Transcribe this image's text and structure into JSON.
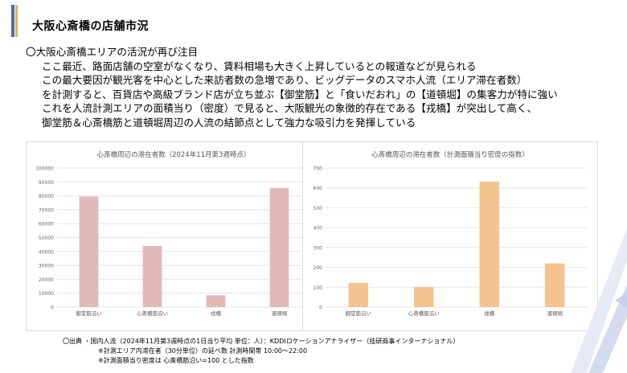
{
  "title": "大阪心斎橋の店舗市況",
  "bullet": {
    "heading": "〇大阪心斎橋エリアの活況が再び注目",
    "lines": [
      "ここ最近、路面店舗の空室がなくなり、賃料相場も大きく上昇しているとの報道などが見られる",
      "この最大要因が観光客を中心とした来訪者数の急増であり、ビッグデータのスマホ人流（エリア滞在者数）",
      "を計測すると、百貨店や高級ブランド店が立ち並ぶ【御堂筋】と「食いだおれ」の【道頓堀】の集客力が特に強い",
      "これを人流計測エリアの面積当り（密度）で見ると、大阪観光の象徴的存在である【戎橋】が突出して高く、",
      "御堂筋＆心斎橋筋と道頓堀周辺の人流の結節点として強力な吸引力を発揮している"
    ]
  },
  "source": {
    "label": "〇出典",
    "lines": [
      "・国内人流（2024年11月第3週時点の1日当り平均 単位：人）：KDDIロケーションアナライザー（技研商事インターナショナル）",
      "※計測エリア内滞在者（30分単位）の延べ数  計測時間帯 10:00～22:00",
      "※計測面積当り密度は 心斎橋筋沿い=100 とした指数"
    ]
  },
  "chart_data": [
    {
      "type": "bar",
      "title": "心斎橋周辺の滞在者数（2024年11月第3週時点）",
      "categories": [
        "御堂筋沿い",
        "心斎橋筋沿い",
        "戎橋",
        "道頓堀"
      ],
      "values": [
        79500,
        44000,
        8500,
        85500
      ],
      "ylim": [
        0,
        100000
      ],
      "yticks": [
        "0",
        "10000",
        "20000",
        "30000",
        "40000",
        "50000",
        "60000",
        "70000",
        "80000",
        "90000",
        "100000"
      ],
      "color": "#e3b8b8",
      "grid": true
    },
    {
      "type": "bar",
      "title": "心斎橋周辺の滞在者数（計測面積当り密度の指数）",
      "categories": [
        "御堂筋沿い",
        "心斎橋筋沿い",
        "戎橋",
        "道頓堀"
      ],
      "values": [
        122,
        100,
        632,
        220
      ],
      "ylim": [
        0,
        700
      ],
      "yticks": [
        "0",
        "100",
        "200",
        "300",
        "400",
        "500",
        "600",
        "700"
      ],
      "color": "#f4c38f",
      "grid": true
    }
  ]
}
